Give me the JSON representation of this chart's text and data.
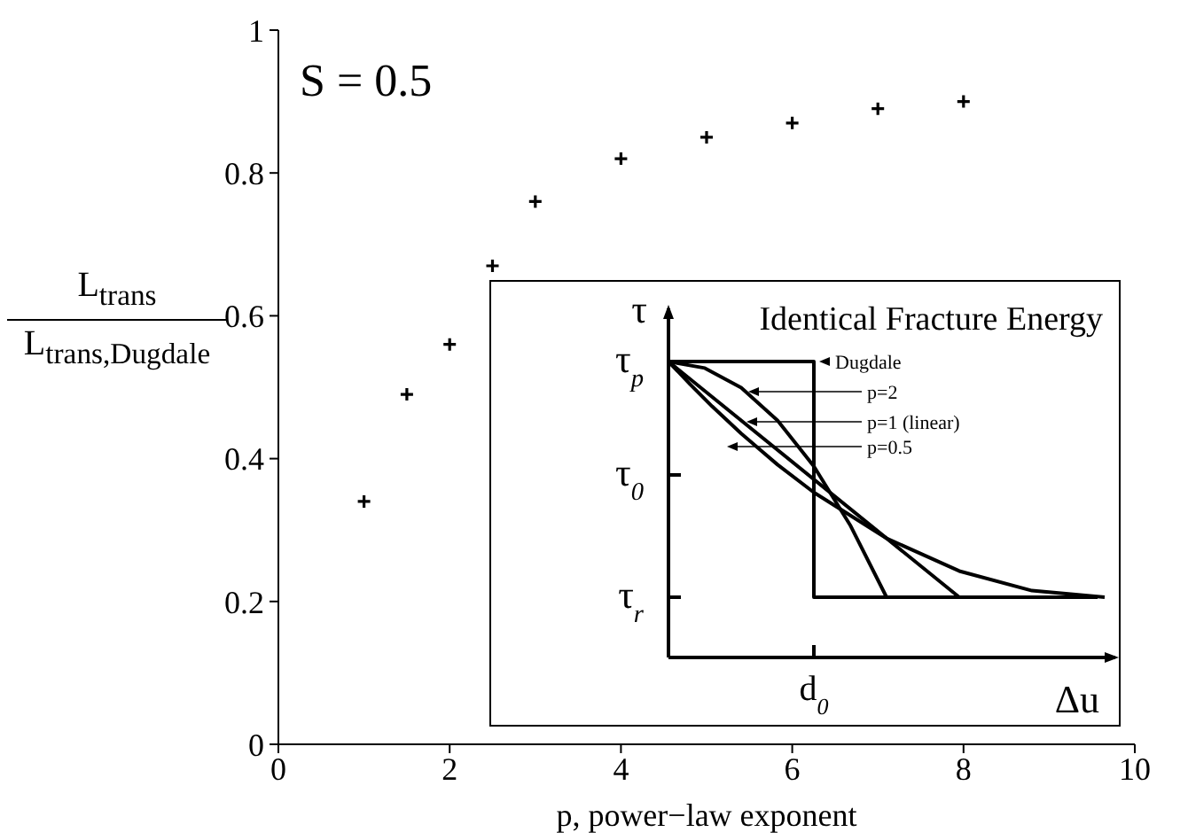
{
  "chart_data": [
    {
      "type": "scatter",
      "xlabel": "p, power−law exponent",
      "ylabel": "L$_{trans}$\nL$_{trans,Dugdale}$",
      "annotations": [
        "S = 0.5"
      ],
      "x": [
        1,
        1.5,
        2,
        2.5,
        3,
        4,
        5,
        6,
        7,
        8
      ],
      "values": [
        0.34,
        0.49,
        0.56,
        0.67,
        0.76,
        0.82,
        0.85,
        0.87,
        0.89,
        0.9
      ],
      "color": "#000000",
      "marker": "cross",
      "xlim": [
        0,
        10
      ],
      "xticks": [
        0,
        2,
        4,
        6,
        8,
        10
      ],
      "ylim": [
        0,
        1
      ],
      "yticks": [
        0,
        0.2,
        0.4,
        0.6,
        0.8,
        1
      ]
    },
    {
      "type": "other",
      "title": "Identical Fracture Energy",
      "xlabel": "Δu",
      "ylabel": "τ",
      "annotations": [
        "τ$_{p}$",
        "τ$_{0}$",
        "τ$_{r}$",
        "d$_{0}$",
        "Dugdale",
        "p=2",
        "p=1 (linear)",
        "p=0.5"
      ]
    }
  ]
}
